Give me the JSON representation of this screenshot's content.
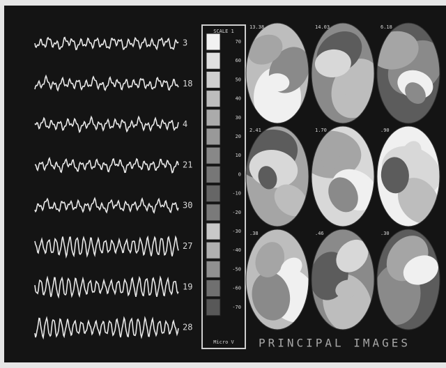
{
  "traces": [
    {
      "label": "3"
    },
    {
      "label": "18"
    },
    {
      "label": "4"
    },
    {
      "label": "21"
    },
    {
      "label": "30"
    },
    {
      "label": "27"
    },
    {
      "label": "19"
    },
    {
      "label": "28"
    }
  ],
  "scale": {
    "title": "SCALE 1",
    "labels": [
      "70",
      "60",
      "50",
      "40",
      "30",
      "20",
      "10",
      "0",
      "-10",
      "-20",
      "-30",
      "-40",
      "-50",
      "-60",
      "-70"
    ],
    "unit": "Micro V"
  },
  "maps": [
    {
      "label": "13.38"
    },
    {
      "label": "14.03"
    },
    {
      "label": "6.18"
    },
    {
      "label": "2.41"
    },
    {
      "label": "1.70"
    },
    {
      "label": ".90"
    },
    {
      "label": ".38"
    },
    {
      "label": ".46"
    },
    {
      "label": ".30"
    }
  ],
  "caption": "PRINCIPAL IMAGES"
}
